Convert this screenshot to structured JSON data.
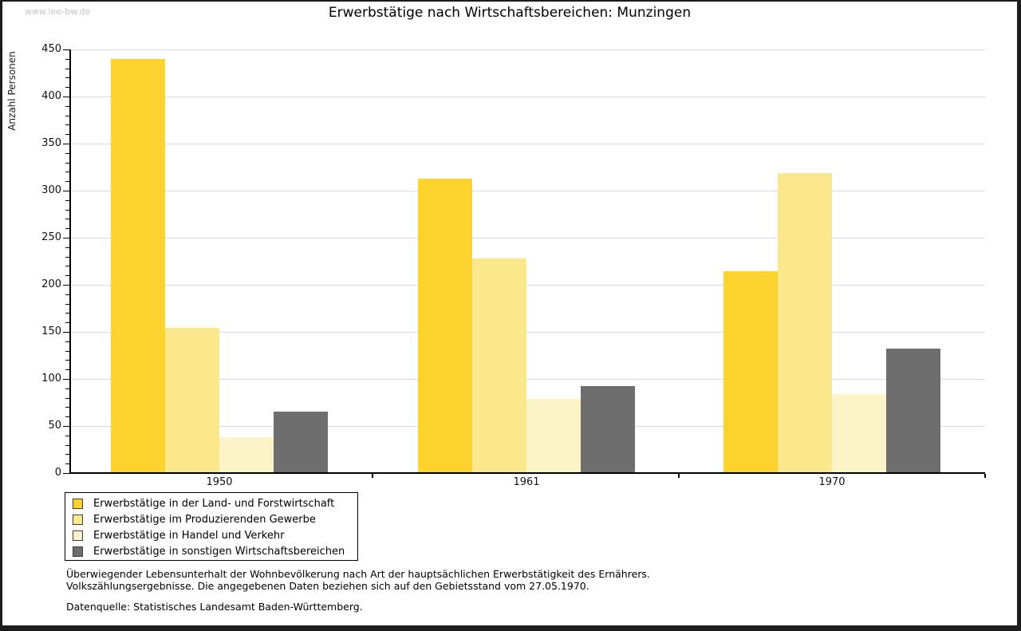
{
  "watermark": "www.leo-bw.de",
  "header": {
    "title": "Erwerbstätige nach Wirtschaftsbereichen: Munzingen"
  },
  "chart_data": {
    "type": "bar",
    "title": "Erwerbstätige nach Wirtschaftsbereichen: Munzingen",
    "ylabel": "Anzahl Personen",
    "xlabel": "",
    "categories": [
      "1950",
      "1961",
      "1970"
    ],
    "series": [
      {
        "name": "Erwerbstätige in der Land- und Forstwirtschaft",
        "color": "#FCD32F",
        "values": [
          440,
          313,
          214
        ]
      },
      {
        "name": "Erwerbstätige im Produzierenden Gewerbe",
        "color": "#FBE88D",
        "values": [
          154,
          228,
          319
        ]
      },
      {
        "name": "Erwerbstätige in Handel und Verkehr",
        "color": "#FCF4C9",
        "values": [
          38,
          79,
          84
        ]
      },
      {
        "name": "Erwerbstätige in sonstigen Wirtschaftsbereichen",
        "color": "#6E6E6E",
        "values": [
          65,
          92,
          132
        ]
      }
    ],
    "ylim": [
      0,
      450
    ],
    "ytick_step": 50,
    "yminor_step": 10,
    "grid": true,
    "legend_position": "bottom-left",
    "gridline_color": "#dbdbdb",
    "axis_color": "#000000"
  },
  "footer": {
    "note_line1": "Überwiegender Lebensunterhalt der Wohnbevölkerung nach Art der hauptsächlichen Erwerbstätigkeit des Ernährers.",
    "note_line2": "Volkszählungsergebnisse. Die angegebenen Daten beziehen sich auf den Gebietsstand vom 27.05.1970.",
    "source": "Datenquelle: Statistisches Landesamt Baden-Württemberg."
  }
}
